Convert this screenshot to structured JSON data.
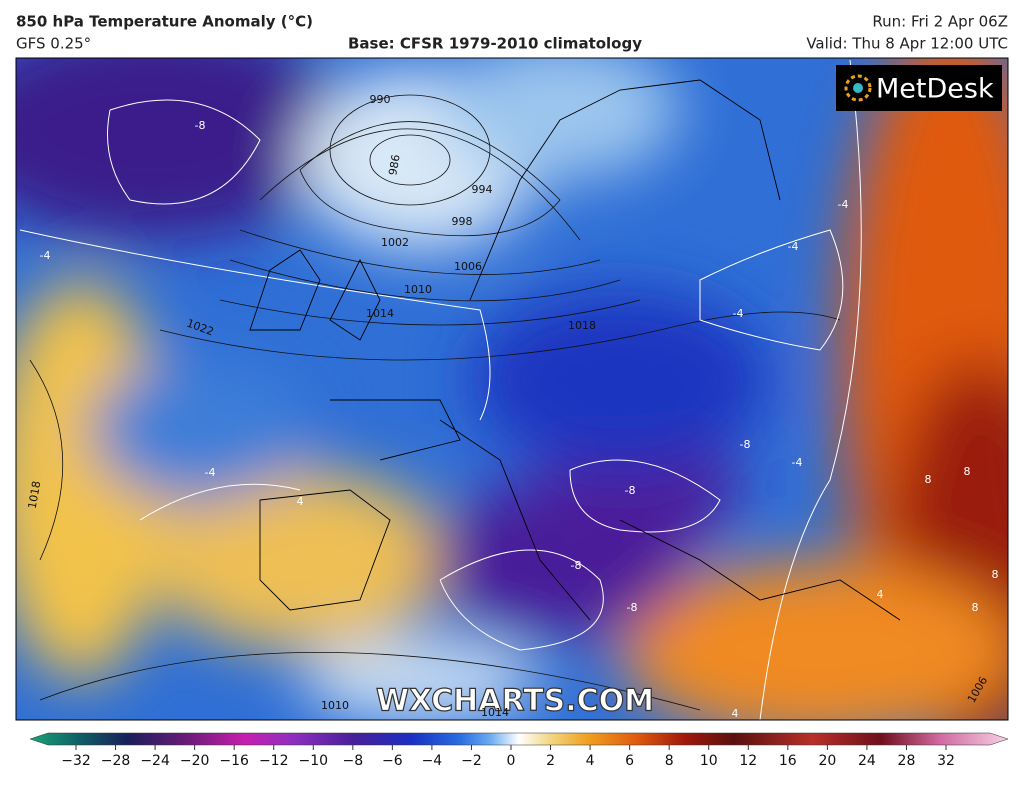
{
  "header": {
    "title": "850 hPa Temperature Anomaly (°C)",
    "model": "GFS 0.25°",
    "base": "Base: CFSR 1979-2010 climatology",
    "run": "Run: Fri 2 Apr 06Z",
    "valid": "Valid: Thu 8 Apr 12:00 UTC"
  },
  "logo": "MetDesk",
  "watermark": "WXCHARTS.COM",
  "isobar_labels": [
    "990",
    "986",
    "994",
    "998",
    "1002",
    "1006",
    "1010",
    "1014",
    "1018",
    "1022",
    "1018",
    "1010",
    "1014",
    "1006"
  ],
  "anomaly_labels": [
    "-8",
    "-4",
    "-4",
    "-4",
    "-4",
    "-8",
    "-4",
    "-8",
    "-8",
    "-8",
    "-4",
    "4",
    "8",
    "8",
    "8",
    "8",
    "4",
    "4"
  ],
  "colorbar": {
    "ticks": [
      "−32",
      "−28",
      "−24",
      "−20",
      "−16",
      "−12",
      "−10",
      "−8",
      "−6",
      "−4",
      "−2",
      "0",
      "2",
      "4",
      "6",
      "8",
      "10",
      "12",
      "16",
      "20",
      "24",
      "28",
      "32"
    ]
  }
}
